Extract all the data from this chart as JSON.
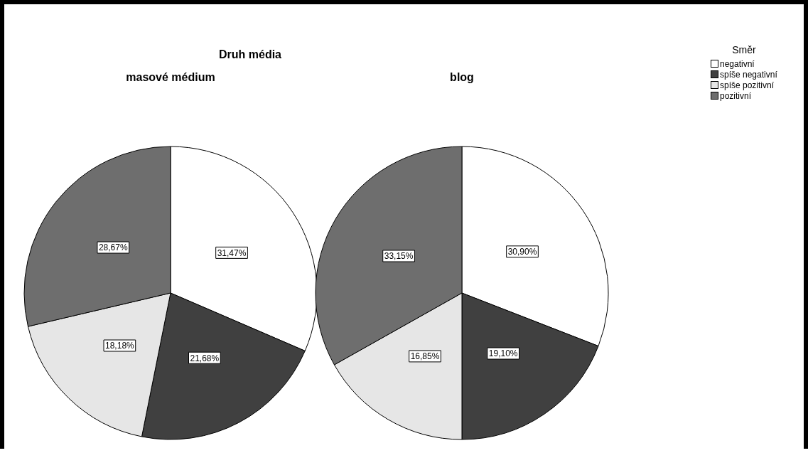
{
  "chart_data": [
    {
      "type": "pie",
      "title": "masové médium",
      "annotations": [
        "Druh média"
      ],
      "categories": [
        null,
        null,
        null,
        null
      ],
      "values": [
        31.47,
        21.68,
        18.18,
        28.67
      ],
      "colors": [
        "#ffffff",
        "#404040",
        "#e6e6e6",
        "#6e6e6e"
      ],
      "value_labels": [
        "31,47%",
        "21,68%",
        "18,18%",
        "28,67%"
      ],
      "legend": false
    },
    {
      "type": "pie",
      "title": "blog",
      "legend_title": "Směr",
      "categories": [
        "negativní",
        "spíše negativní",
        "spíše pozitivní",
        "pozitivní"
      ],
      "values": [
        30.9,
        19.1,
        16.85,
        33.15
      ],
      "colors": [
        "#ffffff",
        "#404040",
        "#e6e6e6",
        "#6e6e6e"
      ],
      "value_labels": [
        "30,90%",
        "19,10%",
        "16,85%",
        "33,15%"
      ],
      "legend": "top right"
    }
  ]
}
